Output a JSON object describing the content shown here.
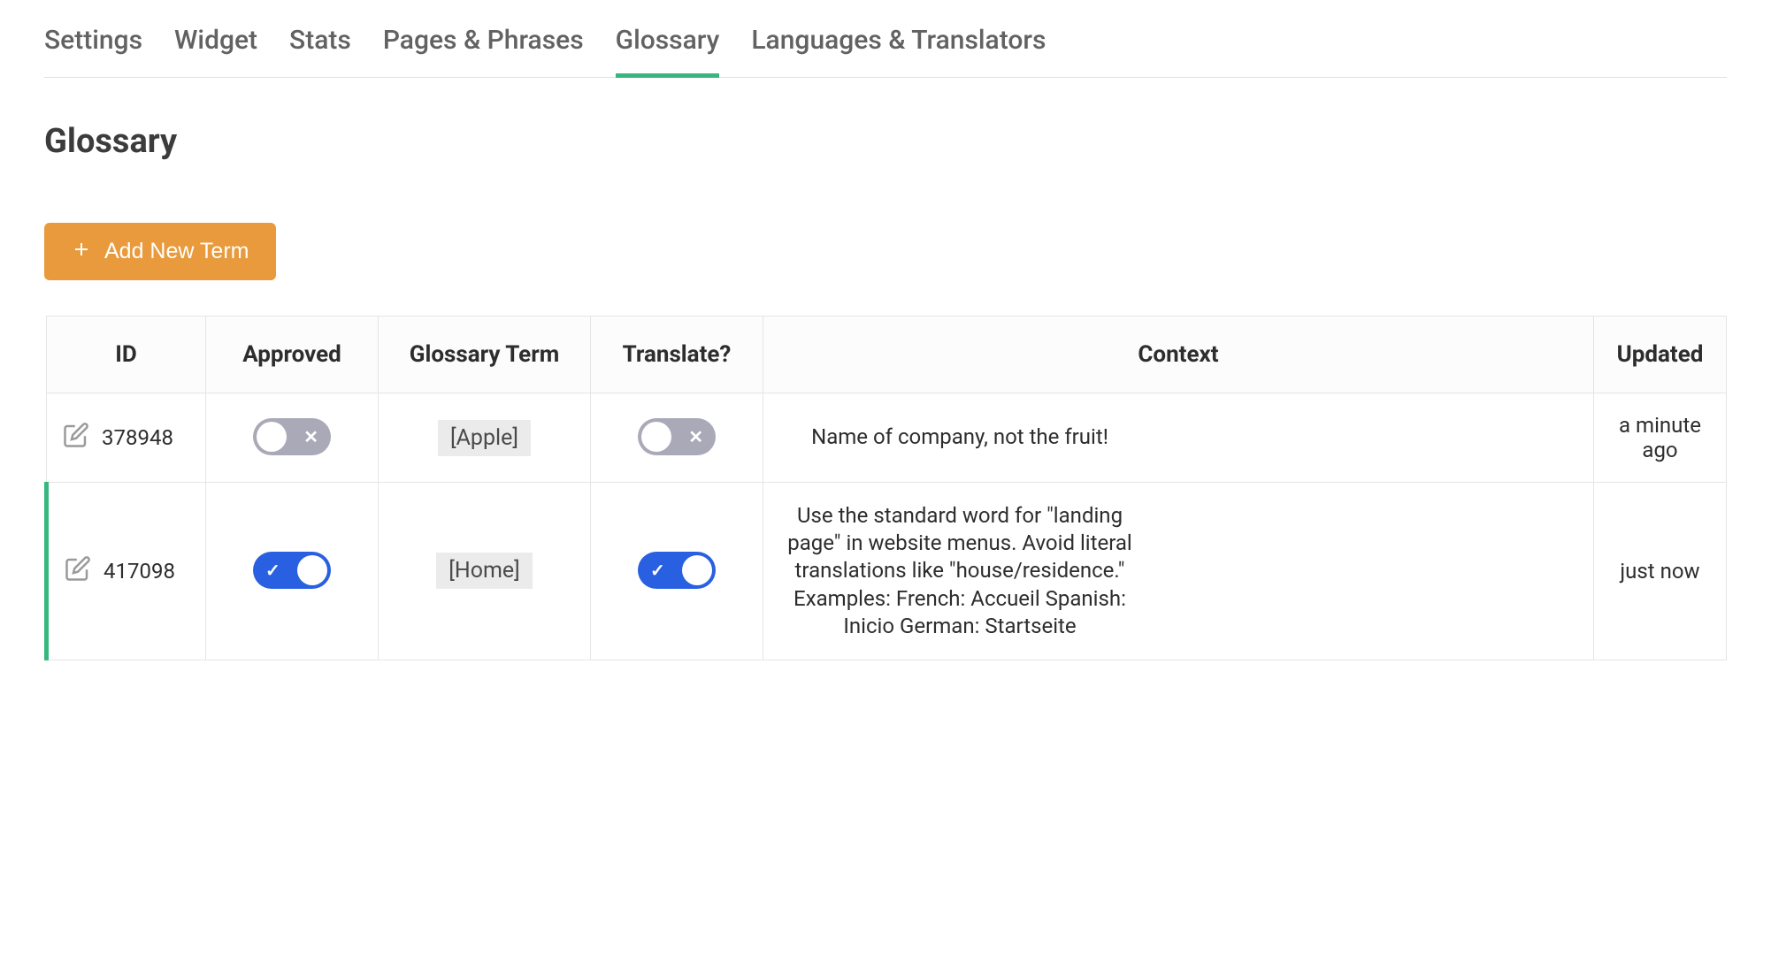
{
  "tabs": [
    {
      "label": "Settings",
      "active": false
    },
    {
      "label": "Widget",
      "active": false
    },
    {
      "label": "Stats",
      "active": false
    },
    {
      "label": "Pages & Phrases",
      "active": false
    },
    {
      "label": "Glossary",
      "active": true
    },
    {
      "label": "Languages & Translators",
      "active": false
    }
  ],
  "page_title": "Glossary",
  "add_button_label": "Add New Term",
  "columns": {
    "id": "ID",
    "approved": "Approved",
    "term": "Glossary Term",
    "translate": "Translate?",
    "context": "Context",
    "updated": "Updated"
  },
  "rows": [
    {
      "id": "378948",
      "approved": false,
      "term": "[Apple]",
      "translate": false,
      "context": "Name of company, not the fruit!",
      "updated": "a minute ago",
      "active": false
    },
    {
      "id": "417098",
      "approved": true,
      "term": "[Home]",
      "translate": true,
      "context": "Use the standard word for \"landing page\" in website menus. Avoid literal translations like \"house/residence.\" Examples: French: Accueil Spanish: Inicio German: Startseite",
      "updated": "just now",
      "active": true
    }
  ],
  "colors": {
    "accent_green": "#37b77d",
    "button_orange": "#e89a3c",
    "toggle_on": "#2860e1",
    "toggle_off": "#a9a9b8",
    "border": "#e5e5e5",
    "text": "#3c3c3c",
    "tab_text": "#626262",
    "chip_bg": "#ebebeb"
  }
}
